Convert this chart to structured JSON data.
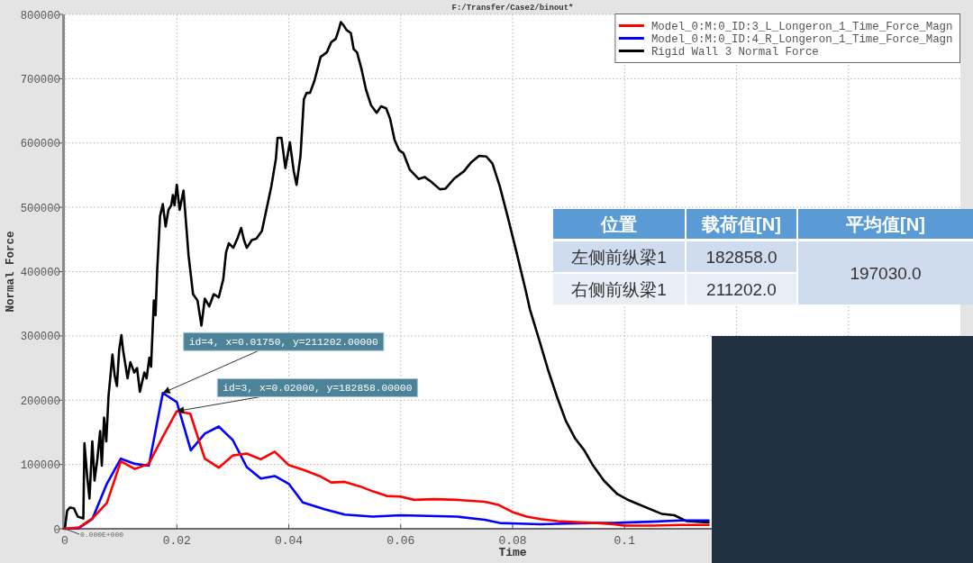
{
  "chart_data": [
    {
      "type": "line",
      "title": "F:/Transfer/Case2/binout*",
      "xlabel": "Time",
      "ylabel": "Normal Force",
      "xlim": [
        0,
        0.16
      ],
      "xticks": [
        0,
        0.02,
        0.04,
        0.06,
        0.08,
        0.1,
        {
          "value": 0.12,
          "label": null
        },
        {
          "value": 0.14,
          "label": null
        }
      ],
      "ylim": [
        0,
        800000
      ],
      "yticks": [
        0,
        100000,
        200000,
        300000,
        400000,
        500000,
        600000,
        700000,
        800000
      ],
      "grid": true,
      "legend": "top right",
      "series": [
        {
          "name": "Model_0:M:0_ID:3_L_Longeron_1_Time_Force_Magn",
          "color": "#ff0000",
          "x": [
            0,
            0.0025,
            0.0049,
            0.0075,
            0.01,
            0.0125,
            0.015,
            0.0175,
            0.02,
            0.0224,
            0.025,
            0.0275,
            0.03,
            0.0325,
            0.035,
            0.0375,
            0.04,
            0.0428,
            0.0455,
            0.0476,
            0.05,
            0.0527,
            0.0551,
            0.0575,
            0.06,
            0.0624,
            0.066,
            0.07,
            0.075,
            0.0775,
            0.08,
            0.0825,
            0.085,
            0.088,
            0.092,
            0.095,
            0.098,
            0.1,
            0.105,
            0.11,
            0.115
          ],
          "values": [
            0,
            2000,
            16000,
            40000,
            105000,
            93000,
            101000,
            143000,
            182858,
            179000,
            109000,
            95000,
            114000,
            117000,
            108000,
            120000,
            99000,
            91000,
            82000,
            72000,
            73000,
            66000,
            58000,
            51000,
            50000,
            45000,
            46000,
            45000,
            42000,
            37000,
            26000,
            19000,
            15000,
            12000,
            10000,
            9000,
            7000,
            5000,
            5000,
            6000,
            6000
          ]
        },
        {
          "name": "Model_0:M:0_ID:4_R_Longeron_1_Time_Force_Magn",
          "color": "#0000ff",
          "x": [
            0,
            0.0025,
            0.0049,
            0.0075,
            0.01,
            0.0125,
            0.015,
            0.0175,
            0.02,
            0.0225,
            0.025,
            0.0275,
            0.03,
            0.0325,
            0.035,
            0.0375,
            0.04,
            0.0425,
            0.0465,
            0.05,
            0.055,
            0.06,
            0.065,
            0.07,
            0.075,
            0.0777,
            0.081,
            0.085,
            0.0895,
            0.094,
            0.098,
            0.101,
            0.105,
            0.11,
            0.115
          ],
          "values": [
            0,
            1000,
            15000,
            70000,
            109000,
            101000,
            98000,
            211202,
            197000,
            122000,
            148000,
            159000,
            138000,
            96000,
            78000,
            82000,
            70000,
            41000,
            30000,
            22000,
            19000,
            21000,
            20000,
            19000,
            14000,
            9000,
            8000,
            7000,
            8000,
            9000,
            9000,
            10000,
            11000,
            13000,
            13000
          ]
        },
        {
          "name": "Rigid Wall 3 Normal Force",
          "color": "#000000",
          "x": [
            0,
            0.0004,
            0.0009,
            0.0016,
            0.0023,
            0.0033,
            0.0035,
            0.004,
            0.0044,
            0.0049,
            0.0053,
            0.0058,
            0.0063,
            0.0066,
            0.007,
            0.0074,
            0.0078,
            0.0085,
            0.0089,
            0.0093,
            0.0097,
            0.0101,
            0.0104,
            0.0112,
            0.0117,
            0.0124,
            0.0129,
            0.0134,
            0.0142,
            0.0146,
            0.0151,
            0.0154,
            0.0159,
            0.0162,
            0.0165,
            0.017,
            0.0175,
            0.018,
            0.0185,
            0.019,
            0.0193,
            0.0196,
            0.02,
            0.0205,
            0.0212,
            0.0221,
            0.0229,
            0.0237,
            0.0244,
            0.025,
            0.0258,
            0.0266,
            0.0275,
            0.0283,
            0.0288,
            0.0293,
            0.0301,
            0.0309,
            0.0315,
            0.032,
            0.0325,
            0.0334,
            0.0342,
            0.0352,
            0.036,
            0.0369,
            0.0377,
            0.038,
            0.0387,
            0.0394,
            0.0402,
            0.0409,
            0.0414,
            0.0421,
            0.0427,
            0.0432,
            0.0438,
            0.0446,
            0.0457,
            0.0468,
            0.0476,
            0.0484,
            0.049,
            0.0493,
            0.0498,
            0.0503,
            0.0511,
            0.0516,
            0.0522,
            0.053,
            0.0538,
            0.0547,
            0.0557,
            0.0565,
            0.0574,
            0.0581,
            0.0589,
            0.0597,
            0.0605,
            0.0616,
            0.0632,
            0.0643,
            0.0654,
            0.067,
            0.068,
            0.0696,
            0.0713,
            0.0726,
            0.074,
            0.0753,
            0.0764,
            0.0777,
            0.0791,
            0.0807,
            0.0823,
            0.0831,
            0.0847,
            0.0863,
            0.0879,
            0.0895,
            0.0912,
            0.0928,
            0.0944,
            0.0963,
            0.0987,
            0.1006,
            0.1014,
            0.1067,
            0.1089,
            0.111,
            0.115
          ],
          "values": [
            0,
            28000,
            33000,
            32000,
            19000,
            16000,
            133000,
            80000,
            47000,
            136000,
            75000,
            108000,
            152000,
            98000,
            173000,
            136000,
            206000,
            271000,
            238000,
            222000,
            278000,
            301000,
            278000,
            234000,
            259000,
            243000,
            250000,
            213000,
            243000,
            234000,
            266000,
            252000,
            355000,
            332000,
            402000,
            486000,
            505000,
            470000,
            496000,
            503000,
            519000,
            503000,
            535000,
            496000,
            526000,
            425000,
            365000,
            355000,
            316000,
            358000,
            346000,
            365000,
            360000,
            388000,
            430000,
            444000,
            437000,
            453000,
            468000,
            449000,
            437000,
            449000,
            451000,
            463000,
            496000,
            533000,
            575000,
            608000,
            608000,
            561000,
            601000,
            556000,
            535000,
            580000,
            668000,
            678000,
            678000,
            697000,
            734000,
            741000,
            757000,
            762000,
            778000,
            788000,
            783000,
            776000,
            771000,
            746000,
            741000,
            715000,
            683000,
            659000,
            647000,
            657000,
            654000,
            638000,
            605000,
            589000,
            584000,
            559000,
            544000,
            547000,
            540000,
            528000,
            529000,
            545000,
            556000,
            570000,
            580000,
            579000,
            568000,
            533000,
            486000,
            430000,
            372000,
            341000,
            295000,
            248000,
            206000,
            168000,
            140000,
            122000,
            98000,
            75000,
            54000,
            45000,
            42000,
            23000,
            21000,
            12000,
            10000
          ]
        }
      ],
      "annotations": [
        {
          "text": "id=4, x=0.01750, y=211202.00000",
          "x": 0.0175,
          "y": 211202
        },
        {
          "text": "id=3, x=0.02000, y=182858.00000",
          "x": 0.02,
          "y": 182858
        },
        {
          "text": "0.000E+000",
          "x": 0,
          "y": 0
        }
      ]
    },
    {
      "type": "other",
      "ylabel": "位置",
      "categories": [
        "载荷值[N]",
        "平均值[N]"
      ],
      "y_categories": [
        "左侧前纵梁1",
        "右侧前纵梁1"
      ],
      "cell_labels": [
        [
          "182858.0",
          "197030.0"
        ],
        [
          "211202.0",
          null
        ]
      ]
    }
  ]
}
